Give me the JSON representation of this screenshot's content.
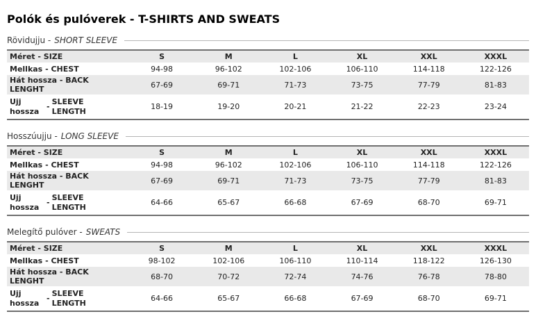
{
  "page": {
    "title": "Polók és pulóverek - T-SHIRTS AND SWEATS"
  },
  "tables": [
    {
      "section": {
        "hu": "Rövidujju -",
        "en": "SHORT SLEEVE"
      },
      "header_label": "Méret - SIZE",
      "sizes": [
        "S",
        "M",
        "L",
        "XL",
        "XXL",
        "XXXL"
      ],
      "rows": [
        {
          "label": "Mellkas - CHEST",
          "values": [
            "94-98",
            "96-102",
            "102-106",
            "106-110",
            "114-118",
            "122-126"
          ]
        },
        {
          "label": "Hát hossza - BACK LENGHT",
          "values": [
            "67-69",
            "69-71",
            "71-73",
            "73-75",
            "77-79",
            "81-83"
          ]
        },
        {
          "label_parts": {
            "hu": "Ujj hossza",
            "sep": "-",
            "en": "SLEEVE LENGTH"
          },
          "tall": true,
          "values": [
            "18-19",
            "19-20",
            "20-21",
            "21-22",
            "22-23",
            "23-24"
          ]
        }
      ]
    },
    {
      "section": {
        "hu": "Hosszúujju -",
        "en": "LONG SLEEVE"
      },
      "header_label": "Méret - SIZE",
      "sizes": [
        "S",
        "M",
        "L",
        "XL",
        "XXL",
        "XXXL"
      ],
      "rows": [
        {
          "label": "Mellkas - CHEST",
          "values": [
            "94-98",
            "96-102",
            "102-106",
            "106-110",
            "114-118",
            "122-126"
          ]
        },
        {
          "label": "Hát hossza - BACK LENGHT",
          "values": [
            "67-69",
            "69-71",
            "71-73",
            "73-75",
            "77-79",
            "81-83"
          ]
        },
        {
          "label_parts": {
            "hu": "Ujj hossza",
            "sep": "-",
            "en": "SLEEVE LENGTH"
          },
          "tall": true,
          "values": [
            "64-66",
            "65-67",
            "66-68",
            "67-69",
            "68-70",
            "69-71"
          ]
        }
      ]
    },
    {
      "section": {
        "hu": "Melegítő pulóver -",
        "en": "SWEATS"
      },
      "header_label": "Méret - SIZE",
      "sizes": [
        "S",
        "M",
        "L",
        "XL",
        "XXL",
        "XXXL"
      ],
      "rows": [
        {
          "label": "Mellkas - CHEST",
          "values": [
            "98-102",
            "102-106",
            "106-110",
            "110-114",
            "118-122",
            "126-130"
          ]
        },
        {
          "label": "Hát hossza - BACK LENGHT",
          "values": [
            "68-70",
            "70-72",
            "72-74",
            "74-76",
            "76-78",
            "78-80"
          ]
        },
        {
          "label_parts": {
            "hu": "Ujj hossza",
            "sep": "-",
            "en": "SLEEVE LENGTH"
          },
          "tall": true,
          "values": [
            "64-66",
            "65-67",
            "66-68",
            "67-69",
            "68-70",
            "69-71"
          ]
        }
      ]
    }
  ]
}
